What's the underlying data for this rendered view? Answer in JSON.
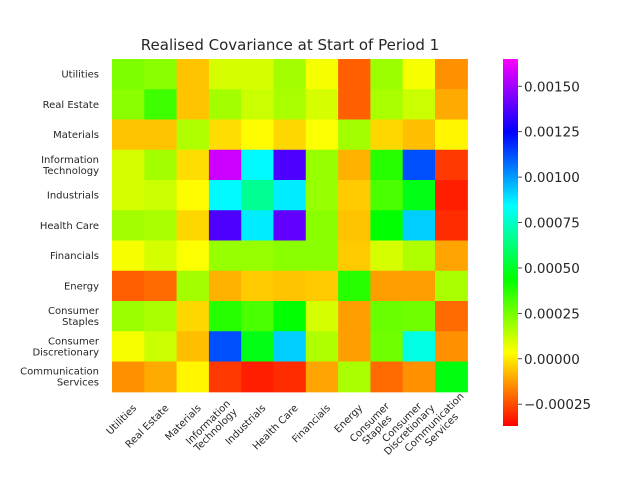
{
  "chart_data": {
    "type": "heatmap",
    "title": "Realised Covariance at Start of Period 1",
    "row_labels": [
      [
        "Utilities"
      ],
      [
        "Real Estate"
      ],
      [
        "Materials"
      ],
      [
        "Information",
        "Technology"
      ],
      [
        "Industrials"
      ],
      [
        "Health Care"
      ],
      [
        "Financials"
      ],
      [
        "Energy"
      ],
      [
        "Consumer",
        "Staples"
      ],
      [
        "Consumer",
        "Discretionary"
      ],
      [
        "Communication",
        "Services"
      ]
    ],
    "col_labels": [
      [
        "Utilities"
      ],
      [
        "Real Estate"
      ],
      [
        "Materials"
      ],
      [
        "Information",
        "Technology"
      ],
      [
        "Industrials"
      ],
      [
        "Health Care"
      ],
      [
        "Financials"
      ],
      [
        "Energy"
      ],
      [
        "Consumer",
        "Staples"
      ],
      [
        "Consumer",
        "Discretionary"
      ],
      [
        "Communication",
        "Services"
      ]
    ],
    "values": [
      [
        0.00024,
        0.00022,
        -6e-05,
        0.0001,
        0.0001,
        0.00018,
        5e-05,
        -0.00022,
        0.00019,
        5e-05,
        -0.00014
      ],
      [
        0.00022,
        0.00034,
        -6e-05,
        0.00018,
        0.00012,
        0.00017,
        0.0001,
        -0.00022,
        0.00017,
        0.00012,
        -0.0001
      ],
      [
        -6e-05,
        -6e-05,
        0.00016,
        -2e-05,
        3e-05,
        -3e-05,
        4e-05,
        0.00018,
        -3e-05,
        -7e-05,
        2e-05
      ],
      [
        0.0001,
        0.00018,
        -2e-05,
        0.00157,
        0.00085,
        0.00137,
        0.0002,
        -9e-05,
        0.00038,
        0.00112,
        -0.00028
      ],
      [
        0.0001,
        0.00012,
        3e-05,
        0.00085,
        0.00067,
        0.00087,
        0.0002,
        -5e-05,
        0.00032,
        0.00047,
        -0.00032
      ],
      [
        0.00018,
        0.00017,
        -3e-05,
        0.00137,
        0.00087,
        0.0014,
        0.00022,
        -6e-05,
        0.00044,
        0.00092,
        -0.0003
      ],
      [
        5e-05,
        0.0001,
        4e-05,
        0.0002,
        0.0002,
        0.00022,
        0.00022,
        -5e-05,
        0.0001,
        0.00016,
        -0.00011
      ],
      [
        -0.00022,
        -0.0002,
        0.00018,
        -9e-05,
        -5e-05,
        -6e-05,
        -5e-05,
        0.00038,
        -0.00012,
        -0.00012,
        0.00017
      ],
      [
        0.00019,
        0.00017,
        -3e-05,
        0.00038,
        0.00032,
        0.00044,
        0.0001,
        -0.00012,
        0.00027,
        0.00026,
        -0.0002
      ],
      [
        5e-05,
        0.00012,
        -7e-05,
        0.00112,
        0.00047,
        0.00092,
        0.00016,
        -0.00012,
        0.00026,
        0.0008,
        -0.00014
      ],
      [
        -0.00014,
        -0.0001,
        2e-05,
        -0.00028,
        -0.00032,
        -0.0003,
        -0.00011,
        0.00017,
        -0.0002,
        -0.00014,
        0.00046
      ]
    ],
    "vmin": -0.00037,
    "vmax": 0.00165,
    "colormap": "gist_rainbow_r",
    "colorbar_ticks": [
      0.0015,
      0.00125,
      0.001,
      0.00075,
      0.0005,
      0.00025,
      0.0,
      -0.00025
    ],
    "colorbar_tick_labels": [
      "0.00150",
      "0.00125",
      "0.00100",
      "0.00075",
      "0.00050",
      "0.00025",
      "0.00000",
      "−0.00025"
    ],
    "colors": {
      "background": "#ffffff",
      "text": "#262626"
    },
    "grid": false
  }
}
